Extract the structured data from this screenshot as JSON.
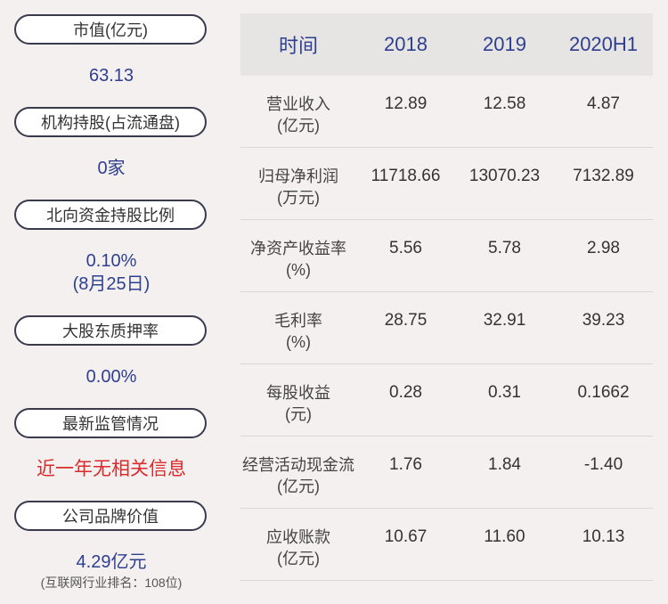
{
  "left": {
    "items": [
      {
        "label": "市值(亿元)",
        "value": "63.13"
      },
      {
        "label": "机构持股(占流通盘)",
        "value": "0家"
      },
      {
        "label": "北向资金持股比例",
        "value": "0.10%",
        "sub": "(8月25日)"
      },
      {
        "label": "大股东质押率",
        "value": "0.00%"
      },
      {
        "label": "最新监管情况",
        "value": "近一年无相关信息"
      },
      {
        "label": "公司品牌价值",
        "value": "4.29亿元",
        "sub": "(互联网行业排名：108位)"
      }
    ]
  },
  "table": {
    "headers": [
      "时间",
      "2018",
      "2019",
      "2020H1"
    ],
    "rows": [
      {
        "label1": "营业收入",
        "label2": "(亿元)",
        "values": [
          "12.89",
          "12.58",
          "4.87"
        ]
      },
      {
        "label1": "归母净利润",
        "label2": "(万元)",
        "values": [
          "11718.66",
          "13070.23",
          "7132.89"
        ]
      },
      {
        "label1": "净资产收益率",
        "label2": "(%)",
        "values": [
          "5.56",
          "5.78",
          "2.98"
        ]
      },
      {
        "label1": "毛利率",
        "label2": "(%)",
        "values": [
          "28.75",
          "32.91",
          "39.23"
        ]
      },
      {
        "label1": "每股收益",
        "label2": "(元)",
        "values": [
          "0.28",
          "0.31",
          "0.1662"
        ]
      },
      {
        "label1": "经营活动现金流",
        "label2": "(亿元)",
        "values": [
          "1.76",
          "1.84",
          "-1.40"
        ]
      },
      {
        "label1": "应收账款",
        "label2": "(亿元)",
        "values": [
          "10.67",
          "11.60",
          "10.13"
        ]
      }
    ]
  }
}
